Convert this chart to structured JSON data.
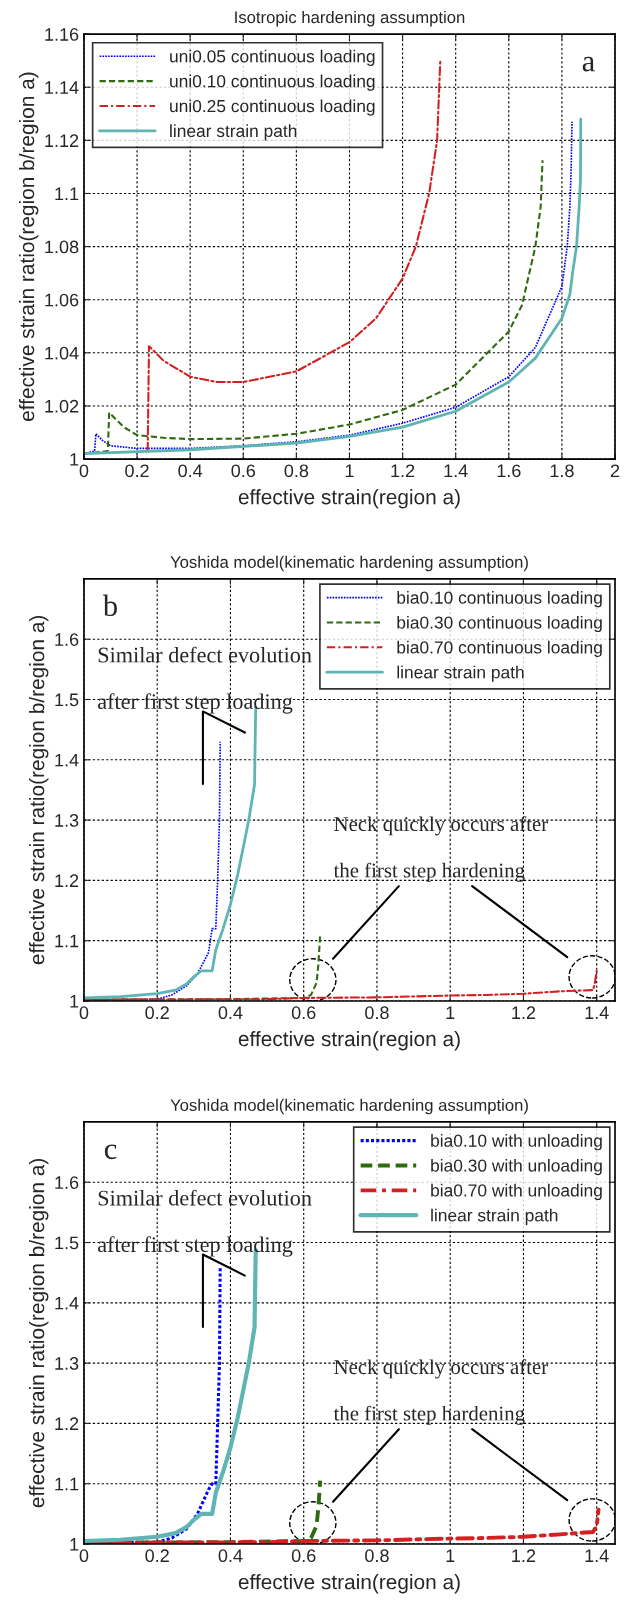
{
  "chart_data": [
    {
      "type": "line",
      "title": "Isotropic hardening assumption",
      "xlabel": "effective strain(region a)",
      "ylabel": "effective strain ratio(region b/region a)",
      "xlim": [
        0,
        2
      ],
      "ylim": [
        1,
        1.16
      ],
      "xticks": [
        0,
        0.2,
        0.4,
        0.6,
        0.8,
        1,
        1.2,
        1.4,
        1.6,
        1.8,
        2
      ],
      "yticks": [
        1,
        1.02,
        1.04,
        1.06,
        1.08,
        1.1,
        1.12,
        1.14,
        1.16
      ],
      "grid": true,
      "legend": "top left",
      "annotations": [
        "a"
      ],
      "series": [
        {
          "name": "uni0.05 continuous loading",
          "color": "#0000ff",
          "line_style": "dotted",
          "x": [
            0,
            0.04,
            0.045,
            0.07,
            0.1,
            0.2,
            0.4,
            0.6,
            0.8,
            1.0,
            1.2,
            1.4,
            1.6,
            1.7,
            1.8,
            1.82,
            1.83,
            1.835,
            1.838
          ],
          "values": [
            1.002,
            1.003,
            1.0095,
            1.007,
            1.005,
            1.004,
            1.004,
            1.005,
            1.0065,
            1.009,
            1.0135,
            1.0195,
            1.031,
            1.042,
            1.065,
            1.08,
            1.095,
            1.11,
            1.127
          ]
        },
        {
          "name": "uni0.10 continuous loading",
          "color": "#2e6b0e",
          "line_style": "dashed",
          "x": [
            0,
            0.09,
            0.095,
            0.15,
            0.2,
            0.3,
            0.4,
            0.6,
            0.8,
            1.0,
            1.2,
            1.4,
            1.6,
            1.65,
            1.7,
            1.72,
            1.727
          ],
          "values": [
            1.002,
            1.003,
            1.0175,
            1.012,
            1.009,
            1.008,
            1.0075,
            1.0077,
            1.0095,
            1.013,
            1.0185,
            1.028,
            1.048,
            1.058,
            1.08,
            1.095,
            1.1125
          ]
        },
        {
          "name": "uni0.25 continuous loading",
          "color": "#d42020",
          "line_style": "dashdot",
          "x": [
            0.24,
            0.245,
            0.3,
            0.4,
            0.5,
            0.6,
            0.8,
            1.0,
            1.1,
            1.2,
            1.25,
            1.3,
            1.33,
            1.342
          ],
          "values": [
            1.003,
            1.0425,
            1.037,
            1.031,
            1.029,
            1.029,
            1.033,
            1.044,
            1.053,
            1.068,
            1.08,
            1.1,
            1.12,
            1.15
          ]
        },
        {
          "name": "linear strain path",
          "color": "#5fb4b4",
          "line_style": "solid",
          "x": [
            0,
            0.4,
            0.8,
            1.0,
            1.2,
            1.4,
            1.6,
            1.7,
            1.8,
            1.83,
            1.84,
            1.855,
            1.865,
            1.87,
            1.871
          ],
          "values": [
            1.002,
            1.0035,
            1.006,
            1.0085,
            1.012,
            1.018,
            1.029,
            1.038,
            1.053,
            1.062,
            1.07,
            1.08,
            1.095,
            1.105,
            1.128
          ]
        }
      ]
    },
    {
      "type": "line",
      "title": "Yoshida model(kinematic hardening assumption)",
      "xlabel": "effective strain(region a)",
      "ylabel": "effective strain ratio(region b/region a)",
      "xlim": [
        0,
        1.45
      ],
      "ylim": [
        1,
        1.7
      ],
      "xticks": [
        0,
        0.2,
        0.4,
        0.6,
        0.8,
        1,
        1.2,
        1.4
      ],
      "yticks": [
        1,
        1.1,
        1.2,
        1.3,
        1.4,
        1.5,
        1.6
      ],
      "grid": true,
      "legend": "top right",
      "annotations": [
        "b",
        "Similar defect evolution",
        "after first step loading",
        "Neck quickly occurs after",
        "the first step hardening"
      ],
      "series": [
        {
          "name": "bia0.10 continuous loading",
          "color": "#0000ff",
          "line_style": "dotted",
          "x": [
            0,
            0.2,
            0.24,
            0.28,
            0.31,
            0.34,
            0.35,
            0.36,
            0.365,
            0.37,
            0.372
          ],
          "values": [
            1.002,
            1.003,
            1.01,
            1.025,
            1.045,
            1.08,
            1.12,
            1.12,
            1.2,
            1.3,
            1.43
          ]
        },
        {
          "name": "bia0.30 continuous loading",
          "color": "#2e6b0e",
          "line_style": "dashed",
          "x": [
            0,
            0.4,
            0.6,
            0.62,
            0.635,
            0.64,
            0.645
          ],
          "values": [
            1.002,
            1.003,
            1.005,
            1.01,
            1.03,
            1.06,
            1.11
          ]
        },
        {
          "name": "bia0.70 continuous loading",
          "color": "#d42020",
          "line_style": "dashdot",
          "x": [
            0,
            0.5,
            0.6,
            0.8,
            1.0,
            1.1,
            1.2,
            1.3,
            1.39,
            1.395,
            1.4
          ],
          "values": [
            1.002,
            1.003,
            1.005,
            1.006,
            1.009,
            1.01,
            1.012,
            1.016,
            1.018,
            1.03,
            1.05
          ]
        },
        {
          "name": "linear strain path",
          "color": "#5fb4b4",
          "line_style": "solid",
          "x": [
            0,
            0.1,
            0.2,
            0.25,
            0.28,
            0.3,
            0.32,
            0.35,
            0.36,
            0.38,
            0.4,
            0.42,
            0.44,
            0.45,
            0.466,
            0.466,
            0.469
          ],
          "values": [
            1.005,
            1.007,
            1.012,
            1.018,
            1.028,
            1.04,
            1.05,
            1.05,
            1.085,
            1.12,
            1.16,
            1.21,
            1.27,
            1.3,
            1.36,
            1.37,
            1.487
          ]
        }
      ]
    },
    {
      "type": "line",
      "title": "Yoshida model(kinematic hardening assumption)",
      "xlabel": "effective strain(region a)",
      "ylabel": "effective strain ratio(region b/region a)",
      "xlim": [
        0,
        1.45
      ],
      "ylim": [
        1,
        1.7
      ],
      "xticks": [
        0,
        0.2,
        0.4,
        0.6,
        0.8,
        1,
        1.2,
        1.4
      ],
      "yticks": [
        1,
        1.1,
        1.2,
        1.3,
        1.4,
        1.5,
        1.6
      ],
      "grid": true,
      "legend": "top right",
      "annotations": [
        "c",
        "Similar defect evolution",
        "after first step loading",
        "Neck quickly occurs after",
        "the first step hardening"
      ],
      "series": [
        {
          "name": "bia0.10 with unloading",
          "color": "#0000ff",
          "line_style": "dotted",
          "x": [
            0,
            0.2,
            0.24,
            0.28,
            0.31,
            0.34,
            0.35,
            0.36,
            0.365,
            0.37,
            0.372
          ],
          "values": [
            1.002,
            1.003,
            1.01,
            1.025,
            1.05,
            1.09,
            1.1,
            1.1,
            1.2,
            1.3,
            1.46
          ]
        },
        {
          "name": "bia0.30 with unloading",
          "color": "#2e6b0e",
          "line_style": "dashed",
          "x": [
            0,
            0.4,
            0.6,
            0.62,
            0.635,
            0.64,
            0.645
          ],
          "values": [
            1.002,
            1.003,
            1.005,
            1.01,
            1.03,
            1.06,
            1.105
          ]
        },
        {
          "name": "bia0.70 with unloading",
          "color": "#d42020",
          "line_style": "dashdot",
          "x": [
            0,
            0.5,
            0.6,
            0.8,
            1.0,
            1.1,
            1.2,
            1.3,
            1.39,
            1.4,
            1.405
          ],
          "values": [
            1.002,
            1.003,
            1.005,
            1.006,
            1.009,
            1.01,
            1.012,
            1.016,
            1.02,
            1.03,
            1.057
          ]
        },
        {
          "name": "linear strain path",
          "color": "#5fb4b4",
          "line_style": "solid",
          "x": [
            0,
            0.1,
            0.2,
            0.25,
            0.28,
            0.3,
            0.32,
            0.35,
            0.36,
            0.38,
            0.4,
            0.42,
            0.44,
            0.45,
            0.466,
            0.466,
            0.469
          ],
          "values": [
            1.005,
            1.007,
            1.012,
            1.018,
            1.028,
            1.04,
            1.05,
            1.05,
            1.085,
            1.12,
            1.16,
            1.21,
            1.27,
            1.3,
            1.36,
            1.37,
            1.487
          ]
        }
      ]
    }
  ]
}
